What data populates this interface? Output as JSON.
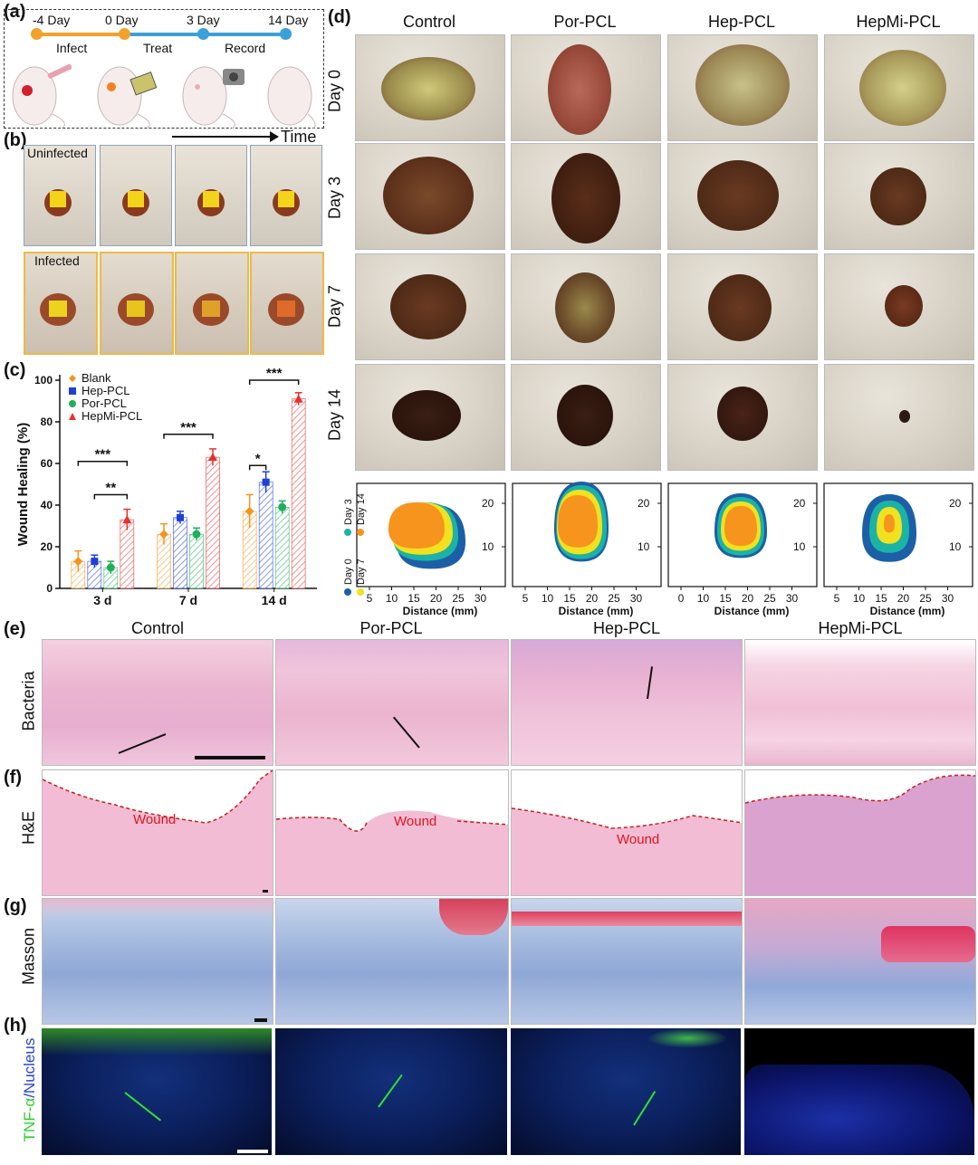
{
  "panels": {
    "a": "(a)",
    "b": "(b)",
    "c": "(c)",
    "d": "(d)",
    "e": "(e)",
    "f": "(f)",
    "g": "(g)",
    "h": "(h)"
  },
  "timeline": {
    "points": [
      "-4 Day",
      "0 Day",
      "3 Day",
      "14 Day"
    ],
    "phases": [
      "Infect",
      "Treat",
      "Record"
    ],
    "axis_label": "Time",
    "colors": {
      "infect": "#f2a22a",
      "treat": "#3aa0d8",
      "record": "#3aa0d8"
    }
  },
  "panel_b": {
    "row1": "Uninfected",
    "row2": "Infected"
  },
  "panel_d": {
    "columns": [
      "Control",
      "Por-PCL",
      "Hep-PCL",
      "HepMi-PCL"
    ],
    "rows": [
      "Day 0",
      "Day 3",
      "Day 7",
      "Day 14"
    ],
    "contour_xlabel": "Distance (mm)",
    "contour_xticks": [
      "5",
      "10",
      "15",
      "20",
      "25",
      "30"
    ],
    "contour_xticks_c3": [
      "0",
      "10",
      "15",
      "20",
      "25",
      "30"
    ],
    "contour_yticks": [
      "20",
      "10"
    ],
    "legend": [
      "Day 0",
      "Day 3",
      "Day 7",
      "Day 14"
    ],
    "legend_colors": [
      "#1c5fa6",
      "#1bb3a6",
      "#f2e11e",
      "#f7941d"
    ]
  },
  "panel_e": {
    "columns": [
      "Control",
      "Por-PCL",
      "Hep-PCL",
      "HepMi-PCL"
    ],
    "rows": [
      "Bacteria",
      "H&E",
      "Masson",
      "TNF-α/Nucleus"
    ],
    "wound_label": "Wound",
    "tnf_label": "TNF-α",
    "nucleus_label": "/Nucleus"
  },
  "chart_data": {
    "type": "bar",
    "ylabel": "Wound Healing (%)",
    "ylim": [
      0,
      100
    ],
    "yticks": [
      "0",
      "20",
      "40",
      "60",
      "80",
      "100"
    ],
    "categories": [
      "3 d",
      "7 d",
      "14 d"
    ],
    "series": [
      {
        "name": "Blank",
        "color": "#f7941d",
        "marker": "diamond",
        "values": [
          13,
          26,
          37
        ],
        "errors": [
          5,
          5,
          8
        ]
      },
      {
        "name": "Hep-PCL",
        "color": "#1f3fd6",
        "marker": "square",
        "values": [
          13,
          34,
          51
        ],
        "errors": [
          3,
          3,
          5
        ]
      },
      {
        "name": "Por-PCL",
        "color": "#1fae5a",
        "marker": "circle",
        "values": [
          10,
          26,
          39
        ],
        "errors": [
          3,
          3,
          3
        ]
      },
      {
        "name": "HepMi-PCL",
        "color": "#e8302e",
        "marker": "triangle",
        "values": [
          33,
          63,
          91
        ],
        "errors": [
          5,
          4,
          3
        ]
      }
    ],
    "significance": [
      {
        "label": "***",
        "group": 0,
        "from": 0,
        "to": 3,
        "y": 61
      },
      {
        "label": "**",
        "group": 0,
        "from": 1,
        "to": 3,
        "y": 45
      },
      {
        "label": "***",
        "group": 1,
        "from": 0,
        "to": 3,
        "y": 74
      },
      {
        "label": "*",
        "group": 2,
        "from": 0,
        "to": 1,
        "y": 59
      },
      {
        "label": "***",
        "group": 2,
        "from": 0,
        "to": 3,
        "y": 100
      }
    ]
  }
}
